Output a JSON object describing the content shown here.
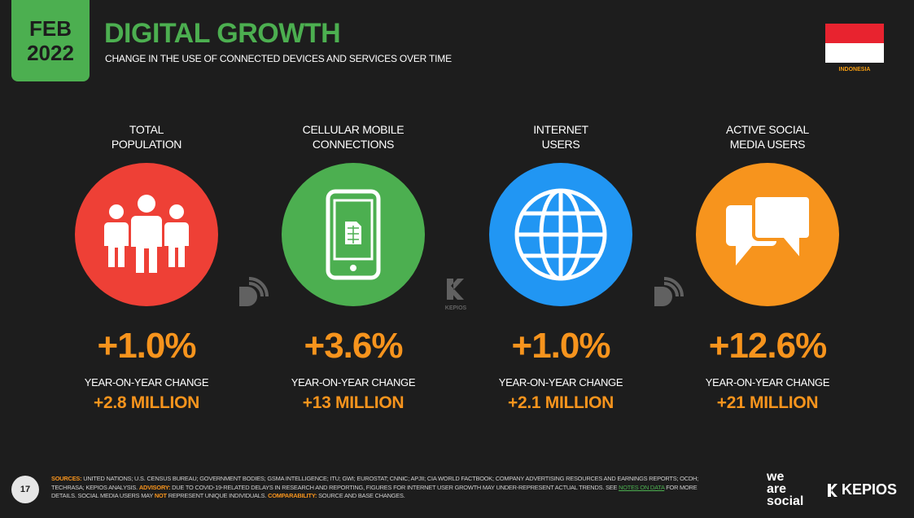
{
  "header": {
    "month": "FEB",
    "year": "2022",
    "title": "DIGITAL GROWTH",
    "subtitle": "CHANGE IN THE USE OF CONNECTED DEVICES AND SERVICES OVER TIME",
    "country": "INDONESIA"
  },
  "colors": {
    "background": "#1d1d1d",
    "accent_green": "#4caf50",
    "accent_orange": "#f7941d",
    "population": "#ee4036",
    "mobile": "#4caf50",
    "internet": "#2196f3",
    "social": "#f7941d"
  },
  "stats": [
    {
      "label_line1": "TOTAL",
      "label_line2": "POPULATION",
      "icon": "people-icon",
      "percent": "+1.0%",
      "yoy_label": "YEAR-ON-YEAR CHANGE",
      "absolute": "+2.8 MILLION"
    },
    {
      "label_line1": "CELLULAR MOBILE",
      "label_line2": "CONNECTIONS",
      "icon": "phone-sim-icon",
      "percent": "+3.6%",
      "yoy_label": "YEAR-ON-YEAR CHANGE",
      "absolute": "+13 MILLION"
    },
    {
      "label_line1": "INTERNET",
      "label_line2": "USERS",
      "icon": "globe-icon",
      "percent": "+1.0%",
      "yoy_label": "YEAR-ON-YEAR CHANGE",
      "absolute": "+2.1 MILLION"
    },
    {
      "label_line1": "ACTIVE SOCIAL",
      "label_line2": "MEDIA USERS",
      "icon": "chat-bubbles-icon",
      "percent": "+12.6%",
      "yoy_label": "YEAR-ON-YEAR CHANGE",
      "absolute": "+21 MILLION"
    }
  ],
  "footer": {
    "page_number": "17",
    "sources_label": "SOURCES:",
    "sources_text": "UNITED NATIONS; U.S. CENSUS BUREAU; GOVERNMENT BODIES; GSMA INTELLIGENCE; ITU; GWI; EUROSTAT; CNNIC; APJII; CIA WORLD FACTBOOK; COMPANY ADVERTISING RESOURCES AND EARNINGS REPORTS; OCDH; TECHRASA; KEPIOS ANALYSIS.",
    "advisory_label": "ADVISORY:",
    "advisory_text": "DUE TO COVID-19-RELATED DELAYS IN RESEARCH AND REPORTING, FIGURES FOR INTERNET USER GROWTH MAY UNDER-REPRESENT ACTUAL TRENDS. SEE",
    "notes_link": "NOTES ON DATA",
    "notes_tail": "FOR MORE DETAILS. SOCIAL MEDIA USERS MAY",
    "not_word": "NOT",
    "represent_text": "REPRESENT UNIQUE INDIVIDUALS.",
    "comparability_label": "COMPARABILITY:",
    "comparability_text": "SOURCE AND BASE CHANGES.",
    "brand1_line1": "we",
    "brand1_line2": "are",
    "brand1_line3": "social",
    "brand2": "KEPIOS",
    "watermark_label": "KEPIOS"
  }
}
